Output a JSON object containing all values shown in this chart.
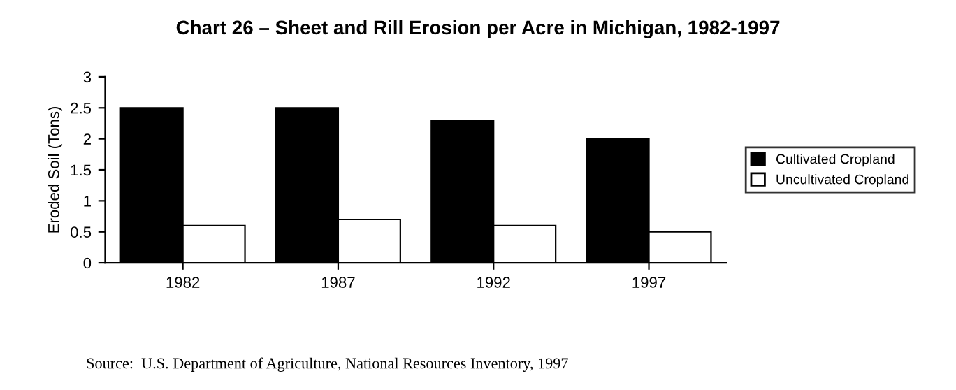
{
  "chart_data": {
    "type": "bar",
    "title": "Chart 26 – Sheet and Rill Erosion per Acre in Michigan, 1982-1997",
    "ylabel": "Eroded Soil (Tons)",
    "categories": [
      "1982",
      "1987",
      "1992",
      "1997"
    ],
    "series": [
      {
        "name": "Cultivated Cropland",
        "color": "#000000",
        "values": [
          2.5,
          2.5,
          2.3,
          2.0
        ]
      },
      {
        "name": "Uncultivated Cropland",
        "color": "#ffffff",
        "values": [
          0.6,
          0.7,
          0.6,
          0.5
        ]
      }
    ],
    "ylim": [
      0,
      3
    ],
    "yticks": [
      0,
      0.5,
      1,
      1.5,
      2,
      2.5,
      3
    ],
    "grid": false,
    "legend": "right",
    "annotations": [
      "Source:  U.S. Department of Agriculture, National Resources Inventory, 1997"
    ]
  }
}
